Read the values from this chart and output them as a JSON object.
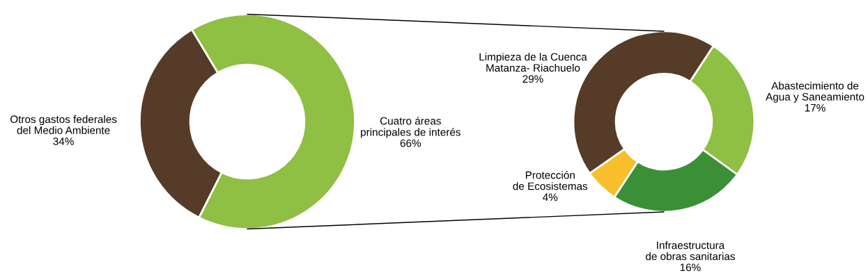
{
  "chart_data": [
    {
      "type": "donut",
      "categories": [
        "Otros gastos federales\ndel Medio Ambiente",
        "Cuatro áreas\nprincipales de interés"
      ],
      "values": [
        34,
        66
      ],
      "colors": [
        "#553b28",
        "#8fbf43"
      ],
      "value_labels": [
        "34%",
        "66%"
      ]
    },
    {
      "type": "donut",
      "categories": [
        "Limpieza de la Cuenca\nMatanza- Riachuelo",
        "Abastecimiento de\nAgua y Saneamiento",
        "Infraestructura\nde obras sanitarias",
        "Protección\nde Ecosistemas"
      ],
      "values": [
        29,
        17,
        16,
        4
      ],
      "colors": [
        "#553b28",
        "#8fbf43",
        "#3a8f37",
        "#f9be2b"
      ],
      "value_labels": [
        "29%",
        "17%",
        "16%",
        "4%"
      ]
    }
  ]
}
